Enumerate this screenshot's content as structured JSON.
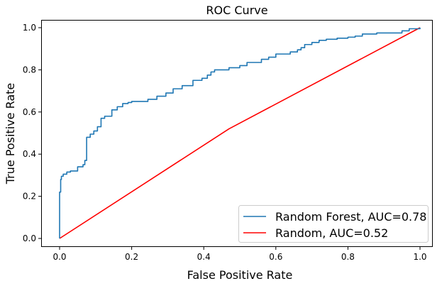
{
  "chart_data": {
    "type": "line",
    "title": "ROC Curve",
    "xlabel": "False Positive Rate",
    "ylabel": "True Positive Rate",
    "xlim": [
      0.0,
      1.0
    ],
    "ylim": [
      0.0,
      1.0
    ],
    "grid": false,
    "legend_position": "bottom-right",
    "x_ticks": [
      "0.0",
      "0.2",
      "0.4",
      "0.6",
      "0.8",
      "1.0"
    ],
    "y_ticks": [
      "0.0",
      "0.2",
      "0.4",
      "0.6",
      "0.8",
      "1.0"
    ],
    "series": [
      {
        "name": "Random Forest, AUC=0.78",
        "color": "#1f77b4",
        "step": true,
        "x": [
          0.0,
          0.0,
          0.003,
          0.003,
          0.005,
          0.005,
          0.01,
          0.01,
          0.02,
          0.02,
          0.03,
          0.03,
          0.05,
          0.05,
          0.065,
          0.065,
          0.07,
          0.07,
          0.075,
          0.075,
          0.085,
          0.085,
          0.095,
          0.095,
          0.105,
          0.105,
          0.115,
          0.115,
          0.125,
          0.125,
          0.145,
          0.145,
          0.16,
          0.16,
          0.175,
          0.175,
          0.19,
          0.19,
          0.2,
          0.2,
          0.245,
          0.245,
          0.27,
          0.27,
          0.295,
          0.295,
          0.315,
          0.315,
          0.34,
          0.34,
          0.37,
          0.37,
          0.395,
          0.395,
          0.41,
          0.41,
          0.42,
          0.42,
          0.43,
          0.43,
          0.47,
          0.47,
          0.5,
          0.5,
          0.52,
          0.52,
          0.56,
          0.56,
          0.58,
          0.58,
          0.6,
          0.6,
          0.64,
          0.64,
          0.66,
          0.66,
          0.67,
          0.67,
          0.68,
          0.68,
          0.7,
          0.7,
          0.72,
          0.72,
          0.74,
          0.74,
          0.77,
          0.77,
          0.8,
          0.8,
          0.82,
          0.82,
          0.84,
          0.84,
          0.88,
          0.88,
          0.92,
          0.92,
          0.95,
          0.95,
          0.97,
          0.97,
          1.0,
          1.0
        ],
        "y": [
          0.0,
          0.22,
          0.22,
          0.28,
          0.28,
          0.295,
          0.295,
          0.305,
          0.305,
          0.315,
          0.315,
          0.32,
          0.32,
          0.34,
          0.34,
          0.35,
          0.35,
          0.37,
          0.37,
          0.48,
          0.48,
          0.495,
          0.495,
          0.51,
          0.51,
          0.53,
          0.53,
          0.57,
          0.57,
          0.58,
          0.58,
          0.61,
          0.61,
          0.625,
          0.625,
          0.64,
          0.64,
          0.645,
          0.645,
          0.65,
          0.65,
          0.66,
          0.66,
          0.675,
          0.675,
          0.69,
          0.69,
          0.71,
          0.71,
          0.725,
          0.725,
          0.75,
          0.75,
          0.76,
          0.76,
          0.775,
          0.775,
          0.79,
          0.79,
          0.8,
          0.8,
          0.81,
          0.81,
          0.82,
          0.82,
          0.835,
          0.835,
          0.85,
          0.85,
          0.86,
          0.86,
          0.875,
          0.875,
          0.885,
          0.885,
          0.895,
          0.895,
          0.905,
          0.905,
          0.92,
          0.92,
          0.93,
          0.93,
          0.94,
          0.94,
          0.945,
          0.945,
          0.95,
          0.95,
          0.955,
          0.955,
          0.96,
          0.96,
          0.97,
          0.97,
          0.975,
          0.975,
          0.975,
          0.975,
          0.985,
          0.985,
          0.995,
          0.995,
          1.0
        ]
      },
      {
        "name": "Random, AUC=0.52",
        "color": "#ff0000",
        "step": false,
        "x": [
          0.0,
          0.47,
          1.0
        ],
        "y": [
          0.0,
          0.52,
          1.0
        ]
      }
    ]
  }
}
